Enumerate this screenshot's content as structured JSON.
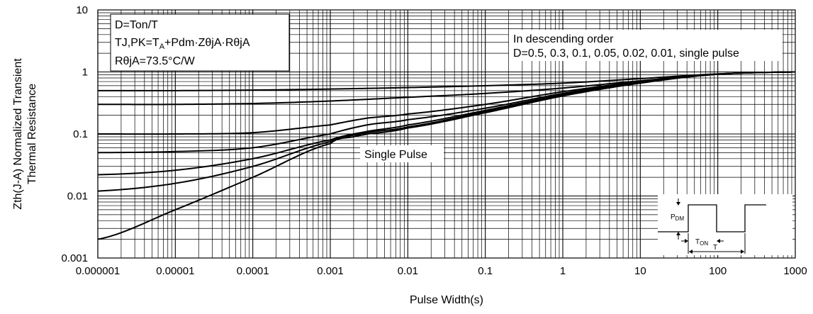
{
  "chart_data": {
    "type": "line",
    "xlabel": "Pulse Width(s)",
    "ylabel_lines": [
      "Zth(J-A) Normalized Transient",
      "Thermal Resistance"
    ],
    "x_scale": "log",
    "y_scale": "log",
    "xlim": [
      1e-06,
      1000
    ],
    "ylim": [
      0.001,
      10
    ],
    "grid": true,
    "x_ticks": [
      {
        "value": 1e-06,
        "label": "0.000001"
      },
      {
        "value": 1e-05,
        "label": "0.00001"
      },
      {
        "value": 0.0001,
        "label": "0.0001"
      },
      {
        "value": 0.001,
        "label": "0.001"
      },
      {
        "value": 0.01,
        "label": "0.01"
      },
      {
        "value": 0.1,
        "label": "0.1"
      },
      {
        "value": 1,
        "label": "1"
      },
      {
        "value": 10,
        "label": "10"
      },
      {
        "value": 100,
        "label": "100"
      },
      {
        "value": 1000,
        "label": "1000"
      }
    ],
    "y_ticks": [
      {
        "value": 0.001,
        "label": "0.001"
      },
      {
        "value": 0.01,
        "label": "0.01"
      },
      {
        "value": 0.1,
        "label": "0.1"
      },
      {
        "value": 1,
        "label": "1"
      },
      {
        "value": 10,
        "label": "10"
      }
    ],
    "note_left": [
      "D=Ton/T",
      "TJ,PK=T",
      "A",
      "+Pdm·ZθjA·RθjA",
      "RθjA=73.5°C/W"
    ],
    "note_right": [
      "In descending order",
      "D=0.5, 0.3, 0.1, 0.05, 0.02, 0.01, single pulse"
    ],
    "annotation_single_pulse": "Single Pulse",
    "inset_labels": {
      "pdm_main": "P",
      "pdm_sub": "DM",
      "ton_main": "T",
      "ton_sub": "ON",
      "period": "T"
    },
    "series": [
      {
        "x": [
          1e-06,
          1e-05,
          0.0001,
          0.001,
          0.01,
          0.1,
          1,
          10,
          100,
          1000
        ],
        "y": [
          0.5,
          0.5,
          0.51,
          0.53,
          0.56,
          0.6,
          0.66,
          0.78,
          0.93,
          1.0
        ]
      },
      {
        "x": [
          1e-06,
          1e-05,
          0.0001,
          0.001,
          0.01,
          0.1,
          1,
          10,
          100,
          1000
        ],
        "y": [
          0.3,
          0.3,
          0.31,
          0.34,
          0.39,
          0.45,
          0.55,
          0.72,
          0.92,
          1.0
        ]
      },
      {
        "x": [
          1e-06,
          1e-05,
          0.0001,
          0.001,
          0.003,
          0.01,
          0.1,
          1,
          10,
          100,
          1000
        ],
        "y": [
          0.1,
          0.1,
          0.105,
          0.14,
          0.18,
          0.21,
          0.3,
          0.48,
          0.7,
          0.92,
          1.0
        ]
      },
      {
        "x": [
          1e-06,
          1e-05,
          0.0001,
          0.001,
          0.003,
          0.01,
          0.1,
          1,
          10,
          100,
          1000
        ],
        "y": [
          0.05,
          0.052,
          0.06,
          0.1,
          0.14,
          0.17,
          0.26,
          0.45,
          0.69,
          0.92,
          1.0
        ]
      },
      {
        "x": [
          1e-06,
          1e-05,
          0.0001,
          0.001,
          0.003,
          0.01,
          0.1,
          1,
          10,
          100,
          1000
        ],
        "y": [
          0.022,
          0.026,
          0.04,
          0.08,
          0.11,
          0.14,
          0.24,
          0.43,
          0.68,
          0.92,
          1.0
        ]
      },
      {
        "x": [
          1e-06,
          1e-05,
          0.0001,
          0.001,
          0.003,
          0.01,
          0.1,
          1,
          10,
          100,
          1000
        ],
        "y": [
          0.012,
          0.016,
          0.03,
          0.075,
          0.105,
          0.13,
          0.23,
          0.42,
          0.67,
          0.92,
          1.0
        ]
      },
      {
        "x": [
          1e-06,
          1e-05,
          0.0001,
          0.001,
          0.002,
          0.003,
          0.01,
          0.1,
          1,
          10,
          100,
          1000
        ],
        "y": [
          0.002,
          0.006,
          0.02,
          0.07,
          0.09,
          0.1,
          0.125,
          0.22,
          0.41,
          0.66,
          0.92,
          1.0
        ]
      }
    ]
  }
}
